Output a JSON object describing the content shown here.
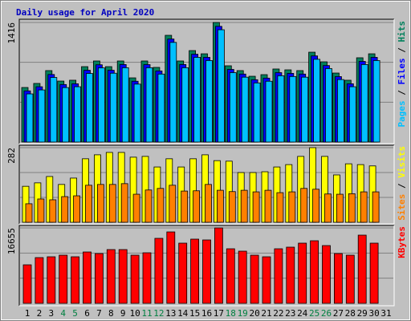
{
  "title": "Daily usage for April 2020",
  "legend_separator": " / ",
  "chart_data": [
    {
      "type": "bar",
      "ylim": [
        0,
        1416
      ],
      "yticks": [
        1416
      ],
      "gridlines": [
        472,
        944
      ],
      "series": [
        {
          "name": "Hits",
          "color": "#00805c",
          "values": [
            646,
            694,
            846,
            722,
            732,
            893,
            960,
            893,
            960,
            760,
            960,
            884,
            1264,
            960,
            1083,
            1045,
            1416,
            903,
            846,
            779,
            798,
            865,
            855,
            846,
            1064,
            950,
            817,
            732,
            998,
            1045,
            null
          ]
        },
        {
          "name": "Files",
          "color": "#0000ff",
          "values": [
            606,
            655,
            800,
            681,
            690,
            850,
            915,
            850,
            918,
            720,
            917,
            842,
            1220,
            918,
            1040,
            1003,
            1370,
            860,
            805,
            738,
            757,
            822,
            813,
            805,
            1020,
            906,
            775,
            690,
            955,
            1003,
            null
          ]
        },
        {
          "name": "Pages",
          "color": "#00c0ff",
          "values": [
            570,
            617,
            765,
            645,
            655,
            812,
            878,
            815,
            880,
            686,
            880,
            805,
            1180,
            880,
            1003,
            965,
            1330,
            822,
            768,
            700,
            720,
            785,
            776,
            768,
            980,
            870,
            740,
            655,
            918,
            965,
            null
          ]
        }
      ]
    },
    {
      "type": "bar",
      "ylim": [
        0,
        282
      ],
      "yticks": [
        282
      ],
      "gridlines": [
        94,
        188
      ],
      "series": [
        {
          "name": "Visits",
          "color": "#ffff00",
          "values": [
            136,
            149,
            173,
            143,
            167,
            240,
            255,
            264,
            264,
            246,
            249,
            209,
            240,
            209,
            240,
            255,
            233,
            231,
            188,
            188,
            191,
            209,
            218,
            249,
            282,
            249,
            179,
            221,
            218,
            213,
            null
          ]
        },
        {
          "name": "Sites",
          "color": "#ff8000",
          "values": [
            70,
            88,
            85,
            97,
            100,
            140,
            143,
            143,
            146,
            106,
            122,
            128,
            140,
            118,
            119,
            143,
            121,
            116,
            121,
            115,
            121,
            112,
            115,
            128,
            125,
            107,
            106,
            108,
            115,
            115,
            null
          ]
        }
      ]
    },
    {
      "type": "bar",
      "ylim": [
        0,
        16655
      ],
      "yticks": [
        16655
      ],
      "gridlines": [
        5552,
        11103
      ],
      "categories": [
        "1",
        "2",
        "3",
        "4",
        "5",
        "6",
        "7",
        "8",
        "9",
        "10",
        "11",
        "12",
        "13",
        "14",
        "15",
        "16",
        "17",
        "18",
        "19",
        "20",
        "21",
        "22",
        "23",
        "24",
        "25",
        "26",
        "27",
        "28",
        "29",
        "30",
        "31"
      ],
      "label_colors": [
        "#000000",
        "#000000",
        "#000000",
        "#008040",
        "#008040",
        "#000000",
        "#000000",
        "#000000",
        "#000000",
        "#000000",
        "#008040",
        "#008040",
        "#000000",
        "#000000",
        "#000000",
        "#000000",
        "#000000",
        "#008040",
        "#008040",
        "#000000",
        "#000000",
        "#000000",
        "#000000",
        "#000000",
        "#008040",
        "#008040",
        "#000000",
        "#000000",
        "#000000",
        "#000000",
        "#000000"
      ],
      "series": [
        {
          "name": "KBytes",
          "color": "#ff0000",
          "values": [
            8505,
            10100,
            10277,
            10631,
            10277,
            11340,
            10985,
            11871,
            11871,
            10631,
            11163,
            14352,
            15769,
            13289,
            14175,
            13998,
            16655,
            12048,
            11517,
            10631,
            10277,
            12048,
            12403,
            13289,
            13820,
            12757,
            10985,
            10631,
            15060,
            13289,
            null
          ]
        }
      ]
    }
  ]
}
